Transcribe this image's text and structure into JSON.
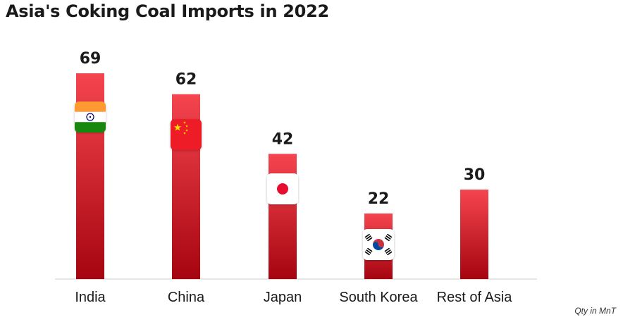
{
  "chart_data": {
    "type": "bar",
    "title": "Asia's Coking Coal Imports in 2022",
    "note": "Qty in MnT",
    "categories": [
      "India",
      "China",
      "Japan",
      "South Korea",
      "Rest of Asia"
    ],
    "values": [
      69,
      62,
      42,
      22,
      30
    ],
    "flags": [
      "india-flag-icon",
      "china-flag-icon",
      "japan-flag-icon",
      "south-korea-flag-icon",
      null
    ],
    "ylim": [
      0,
      69
    ],
    "grid": false,
    "legend": "none",
    "colors": {
      "bar_top": "#f5454f",
      "bar_bottom": "#a50510",
      "axis": "#cccccc",
      "text": "#1a1a1a"
    }
  }
}
